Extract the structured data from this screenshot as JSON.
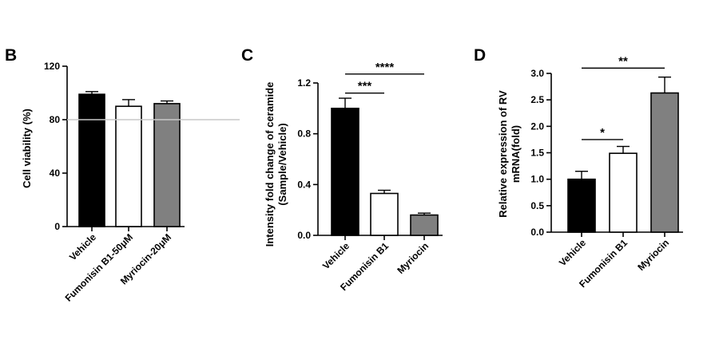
{
  "chart_data": [
    {
      "type": "bar",
      "panel_letter": "B",
      "ylabel": "Cell viability (%)",
      "categories": [
        "Vehicle",
        "Fumonisin B1-50μM",
        "Myriocin-20μM"
      ],
      "values": [
        99,
        90,
        92
      ],
      "errors": [
        2,
        5,
        2
      ],
      "bar_colors": [
        "#000000",
        "#ffffff",
        "#808080"
      ],
      "ylim": [
        0,
        120
      ],
      "yticks": [
        "0",
        "40",
        "80",
        "120"
      ],
      "reference_line": 80,
      "significance": []
    },
    {
      "type": "bar",
      "panel_letter": "C",
      "ylabel": "Intensity fold change of ceramide",
      "ylabel2": "(Sample/Vehicle)",
      "categories": [
        "Vehicle",
        "Fumonisin B1",
        "Myriocin"
      ],
      "values": [
        1.0,
        0.33,
        0.16
      ],
      "errors": [
        0.08,
        0.025,
        0.015
      ],
      "bar_colors": [
        "#000000",
        "#ffffff",
        "#808080"
      ],
      "ylim": [
        0,
        1.2
      ],
      "yticks": [
        "0.0",
        "0.4",
        "0.8",
        "1.2"
      ],
      "significance": [
        {
          "from": 0,
          "to": 1,
          "label": "***",
          "y": 1.12
        },
        {
          "from": 0,
          "to": 2,
          "label": "****",
          "y": 1.27
        }
      ]
    },
    {
      "type": "bar",
      "panel_letter": "D",
      "ylabel": "Relative expression of RV",
      "ylabel2": "mRNA(fold)",
      "categories": [
        "Vehicle",
        "Fumonisin B1",
        "Myriocin"
      ],
      "values": [
        1.0,
        1.49,
        2.63
      ],
      "errors": [
        0.15,
        0.13,
        0.3
      ],
      "bar_colors": [
        "#000000",
        "#ffffff",
        "#808080"
      ],
      "ylim": [
        0,
        3.0
      ],
      "yticks": [
        "0.0",
        "0.5",
        "1.0",
        "1.5",
        "2.0",
        "2.5",
        "3.0"
      ],
      "significance": [
        {
          "from": 0,
          "to": 1,
          "label": "*",
          "y": 1.75
        },
        {
          "from": 0,
          "to": 2,
          "label": "**",
          "y": 3.1
        }
      ]
    }
  ]
}
